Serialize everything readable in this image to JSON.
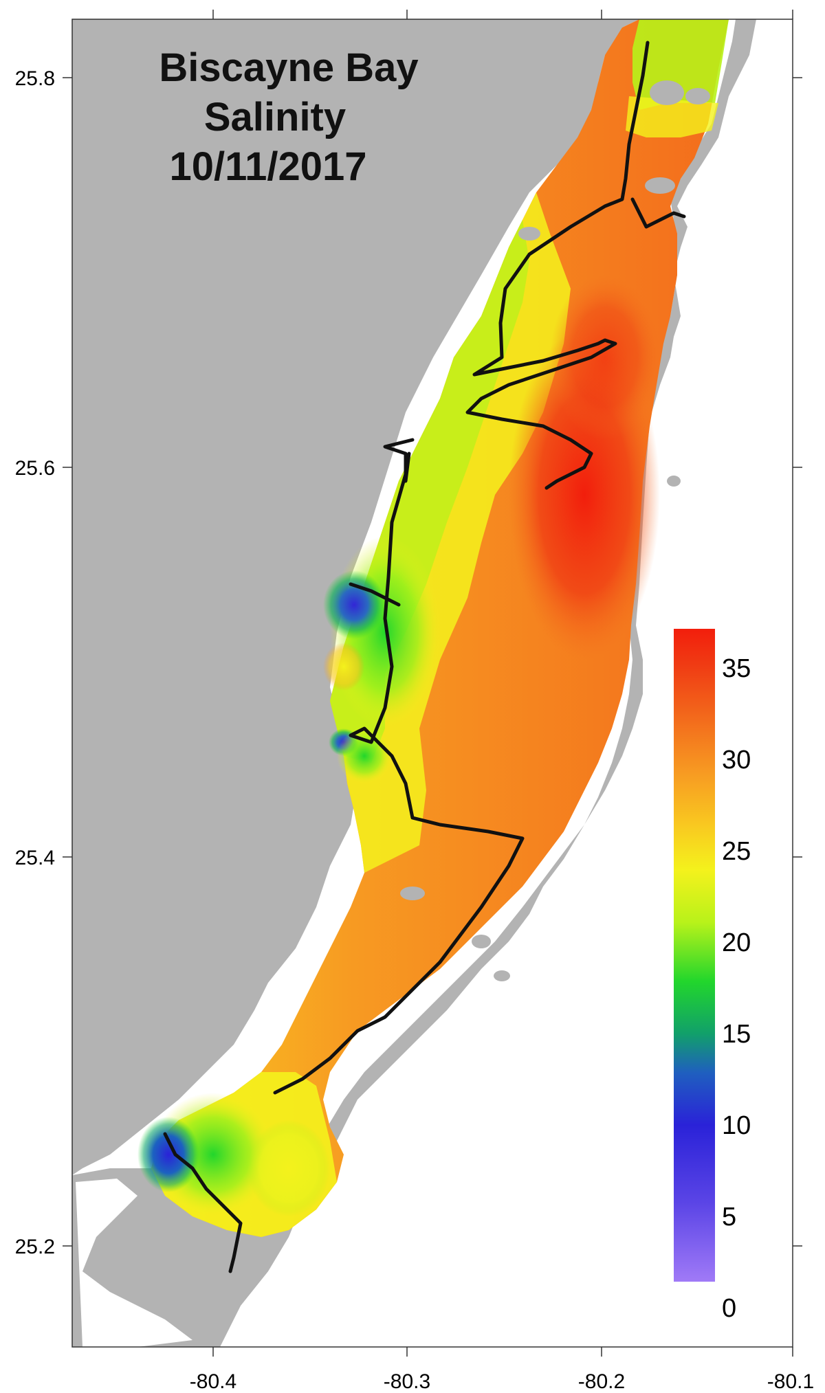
{
  "title": {
    "line1": "Biscayne Bay",
    "line2": "Salinity",
    "line3": "10/11/2017"
  },
  "axes": {
    "x_ticks": [
      "-80.4",
      "-80.3",
      "-80.2",
      "-80.1"
    ],
    "y_ticks": [
      "25.8",
      "25.6",
      "25.4",
      "25.2"
    ],
    "xlim": [
      -80.47,
      -80.1
    ],
    "ylim": [
      25.14,
      25.84
    ]
  },
  "colorbar": {
    "ticks": [
      "35",
      "30",
      "25",
      "20",
      "15",
      "10",
      "5",
      "0"
    ],
    "range": [
      0,
      37
    ],
    "colors": [
      "#8f6cf5",
      "#3b2bd8",
      "#1f5fbf",
      "#11a06a",
      "#22d62c",
      "#b8f21a",
      "#f4f21c",
      "#f9c820",
      "#f79a22",
      "#f36c1c",
      "#f03e14",
      "#f21e0c"
    ]
  },
  "colors": {
    "land": "#b3b3b3",
    "ocean": "#ffffff",
    "track": "#111111"
  },
  "chart_data": {
    "type": "heatmap",
    "title": "Biscayne Bay Salinity 10/11/2017",
    "xlabel": "",
    "ylabel": "",
    "xlim": [
      -80.47,
      -80.1
    ],
    "ylim": [
      25.14,
      25.84
    ],
    "colorbar_range": [
      0,
      37
    ],
    "salinity_samples": [
      {
        "lon": -80.18,
        "lat": 25.79,
        "value": 20
      },
      {
        "lon": -80.19,
        "lat": 25.72,
        "value": 28
      },
      {
        "lon": -80.22,
        "lat": 25.67,
        "value": 31
      },
      {
        "lon": -80.26,
        "lat": 25.65,
        "value": 22
      },
      {
        "lon": -80.21,
        "lat": 25.59,
        "value": 34
      },
      {
        "lon": -80.23,
        "lat": 25.55,
        "value": 32
      },
      {
        "lon": -80.31,
        "lat": 25.55,
        "value": 17
      },
      {
        "lon": -80.33,
        "lat": 25.52,
        "value": 8
      },
      {
        "lon": -80.32,
        "lat": 25.48,
        "value": 15
      },
      {
        "lon": -80.27,
        "lat": 25.48,
        "value": 26
      },
      {
        "lon": -80.22,
        "lat": 25.45,
        "value": 31
      },
      {
        "lon": -80.3,
        "lat": 25.42,
        "value": 26
      },
      {
        "lon": -80.28,
        "lat": 25.35,
        "value": 29
      },
      {
        "lon": -80.34,
        "lat": 25.3,
        "value": 28
      },
      {
        "lon": -80.37,
        "lat": 25.27,
        "value": 24
      },
      {
        "lon": -80.4,
        "lat": 25.25,
        "value": 17
      },
      {
        "lon": -80.42,
        "lat": 25.24,
        "value": 8
      },
      {
        "lon": -80.36,
        "lat": 25.23,
        "value": 22
      },
      {
        "lon": -80.39,
        "lat": 25.2,
        "value": 18
      }
    ]
  }
}
